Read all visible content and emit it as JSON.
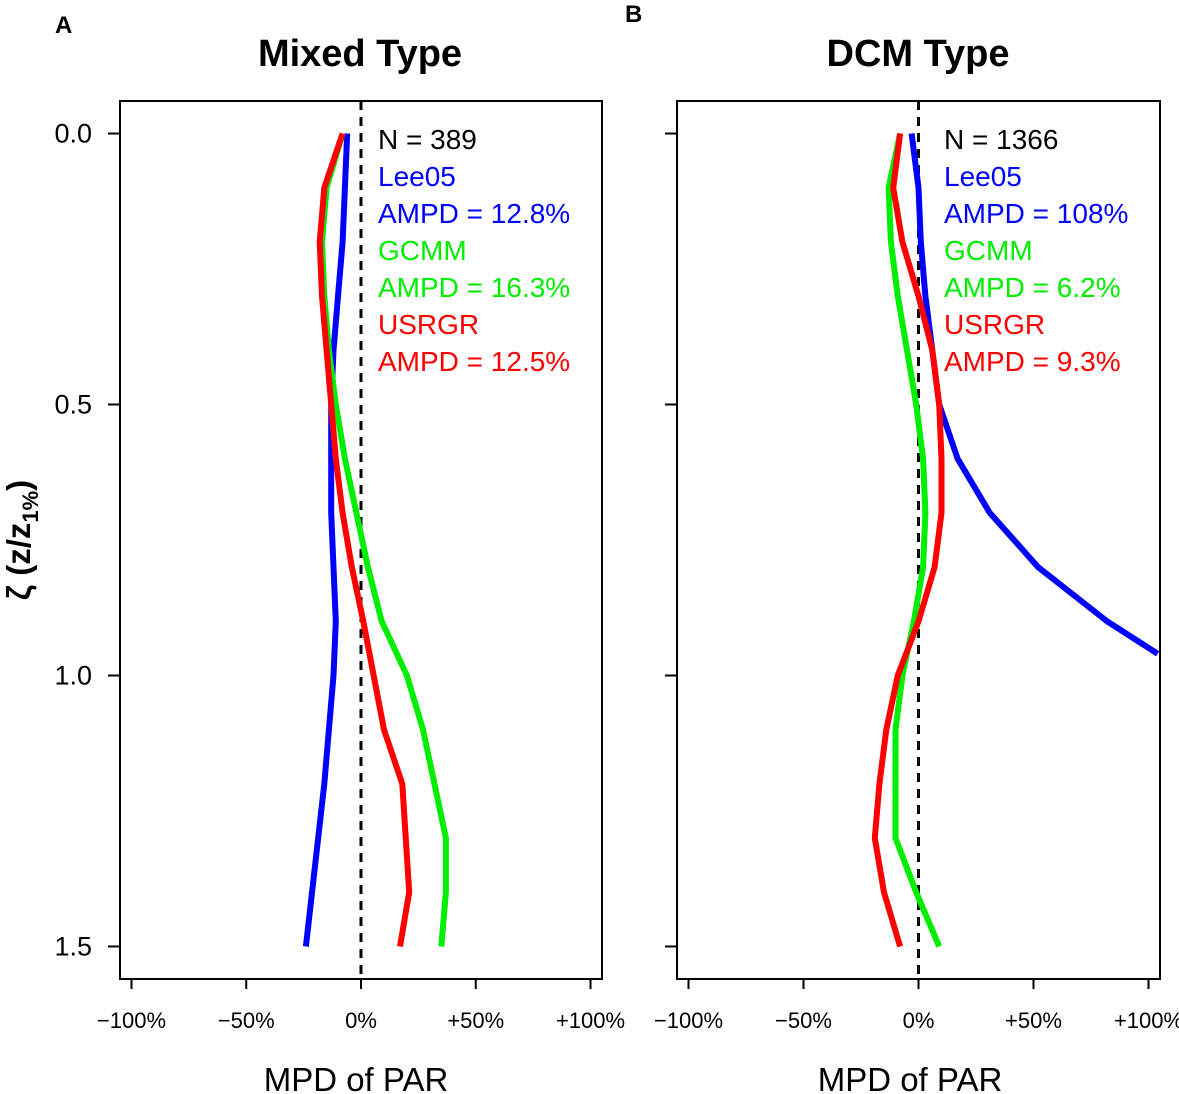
{
  "figure": {
    "ylabel": {
      "prefix": "ζ (z/z",
      "subscript": "1%",
      "suffix": ")"
    }
  },
  "chart_data": [
    {
      "type": "line",
      "panel_letter": "A",
      "title": "Mixed Type",
      "xlabel": "MPD of PAR",
      "xlim": [
        -105,
        105
      ],
      "ylim": [
        1.56,
        -0.06
      ],
      "x_ticks": [
        -100,
        -50,
        0,
        50,
        100
      ],
      "x_tick_labels": [
        "−100%",
        "−50%",
        "0%",
        "+50%",
        "+100%"
      ],
      "y_ticks": [
        0.0,
        0.5,
        1.0,
        1.5
      ],
      "y_tick_labels": [
        "0.0",
        "0.5",
        "1.0",
        "1.5"
      ],
      "reference_line_x": 0,
      "n_label": "N = 389",
      "series": [
        {
          "name": "Lee05",
          "ampd_label": "AMPD = 12.8%",
          "color": "#0000ff",
          "x": [
            -6,
            -7,
            -8,
            -10,
            -12,
            -13,
            -13,
            -13,
            -12,
            -11,
            -12,
            -16,
            -24
          ],
          "y": [
            0.0,
            0.1,
            0.2,
            0.3,
            0.4,
            0.5,
            0.6,
            0.7,
            0.8,
            0.9,
            1.0,
            1.2,
            1.5
          ]
        },
        {
          "name": "GCMM",
          "ampd_label": "AMPD = 16.3%",
          "color": "#00ee00",
          "x": [
            -8,
            -15,
            -17,
            -16,
            -14,
            -11,
            -7,
            -2,
            3,
            9,
            20,
            27,
            37,
            37,
            35
          ],
          "y": [
            0.0,
            0.1,
            0.2,
            0.3,
            0.4,
            0.5,
            0.6,
            0.7,
            0.8,
            0.9,
            1.0,
            1.1,
            1.3,
            1.4,
            1.5
          ]
        },
        {
          "name": "USRGR",
          "ampd_label": "AMPD = 12.5%",
          "color": "#ff0000",
          "x": [
            -8,
            -16,
            -18,
            -17,
            -15,
            -13,
            -11,
            -8,
            -4,
            1,
            10,
            18,
            21,
            17
          ],
          "y": [
            0.0,
            0.1,
            0.2,
            0.3,
            0.4,
            0.5,
            0.6,
            0.7,
            0.8,
            0.9,
            1.1,
            1.2,
            1.4,
            1.5
          ]
        }
      ]
    },
    {
      "type": "line",
      "panel_letter": "B",
      "title": "DCM Type",
      "xlabel": "MPD of PAR",
      "xlim": [
        -105,
        105
      ],
      "ylim": [
        1.56,
        -0.06
      ],
      "x_ticks": [
        -100,
        -50,
        0,
        50,
        100
      ],
      "x_tick_labels": [
        "−100%",
        "−50%",
        "0%",
        "+50%",
        "+100%"
      ],
      "y_ticks": [
        0.0,
        0.5,
        1.0,
        1.5
      ],
      "y_tick_labels": [
        "0.0",
        "0.5",
        "1.0",
        "1.5"
      ],
      "reference_line_x": 0,
      "n_label": "N = 1366",
      "series": [
        {
          "name": "Lee05",
          "ampd_label": "AMPD = 108%",
          "color": "#0000ff",
          "x": [
            -3,
            0,
            1,
            3,
            6,
            9,
            17,
            31,
            52,
            82,
            104
          ],
          "y": [
            0.0,
            0.1,
            0.2,
            0.3,
            0.4,
            0.5,
            0.6,
            0.7,
            0.8,
            0.9,
            0.96
          ]
        },
        {
          "name": "GCMM",
          "ampd_label": "AMPD = 6.2%",
          "color": "#00ee00",
          "x": [
            -8,
            -13,
            -12,
            -9,
            -5,
            -1,
            2,
            3,
            2,
            -2,
            -7,
            -10,
            -10,
            -10,
            -1,
            9
          ],
          "y": [
            0.0,
            0.1,
            0.2,
            0.3,
            0.4,
            0.5,
            0.6,
            0.7,
            0.8,
            0.9,
            1.0,
            1.1,
            1.2,
            1.3,
            1.4,
            1.5
          ]
        },
        {
          "name": "USRGR",
          "ampd_label": "AMPD = 9.3%",
          "color": "#ff0000",
          "x": [
            -8,
            -11,
            -7,
            0,
            6,
            9,
            10,
            10,
            7,
            0,
            -9,
            -14,
            -17,
            -19,
            -15,
            -8
          ],
          "y": [
            0.0,
            0.1,
            0.2,
            0.3,
            0.4,
            0.5,
            0.6,
            0.7,
            0.8,
            0.9,
            1.0,
            1.1,
            1.2,
            1.3,
            1.4,
            1.5
          ]
        }
      ]
    }
  ]
}
